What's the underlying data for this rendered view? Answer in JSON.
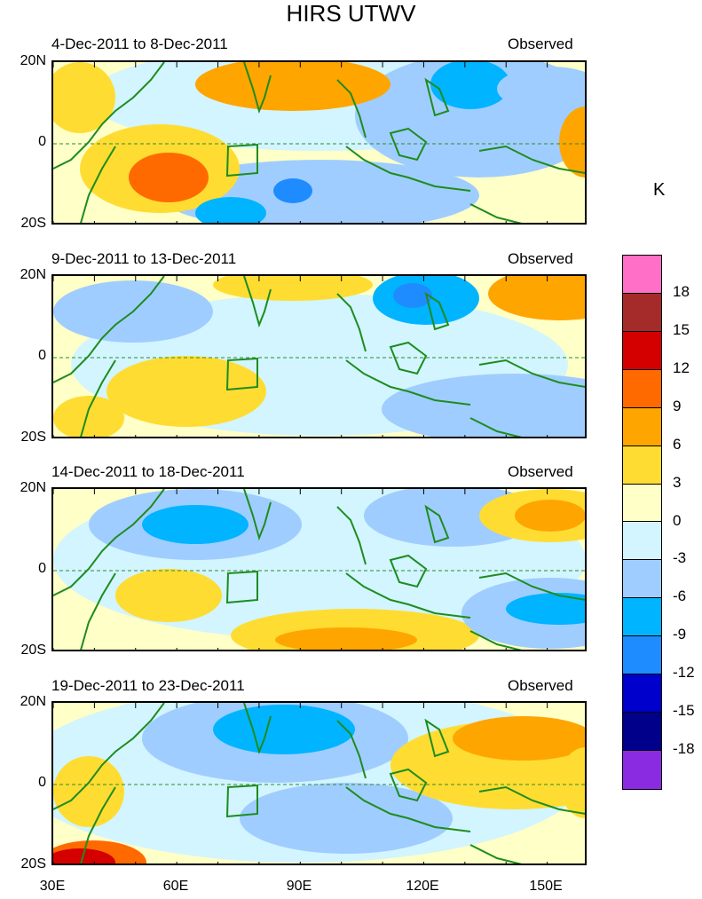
{
  "chart_data": {
    "type": "heatmap",
    "title": "HIRS UTWV",
    "units": "K",
    "region": {
      "lon_range": [
        30,
        160
      ],
      "lat_range": [
        -20,
        20
      ]
    },
    "x_ticks": [
      "30E",
      "60E",
      "90E",
      "120E",
      "150E"
    ],
    "y_ticks": [
      "20N",
      "0",
      "20S"
    ],
    "panels": [
      {
        "period": "4-Dec-2011 to 8-Dec-2011",
        "label": "Observed"
      },
      {
        "period": "9-Dec-2011 to 13-Dec-2011",
        "label": "Observed"
      },
      {
        "period": "14-Dec-2011 to 18-Dec-2011",
        "label": "Observed"
      },
      {
        "period": "19-Dec-2011 to 23-Dec-2011",
        "label": "Observed"
      }
    ],
    "colorbar": {
      "labels": [
        "18",
        "15",
        "12",
        "9",
        "6",
        "3",
        "0",
        "-3",
        "-6",
        "-9",
        "-12",
        "-15",
        "-18"
      ],
      "colors": [
        "#ff6ec7",
        "#a52a2a",
        "#d40000",
        "#ff6a00",
        "#ffa500",
        "#ffdc32",
        "#ffffc8",
        "#d2f5ff",
        "#a0cdff",
        "#00b4ff",
        "#1e8cff",
        "#0000cd",
        "#00008b",
        "#8a2be2"
      ]
    }
  }
}
